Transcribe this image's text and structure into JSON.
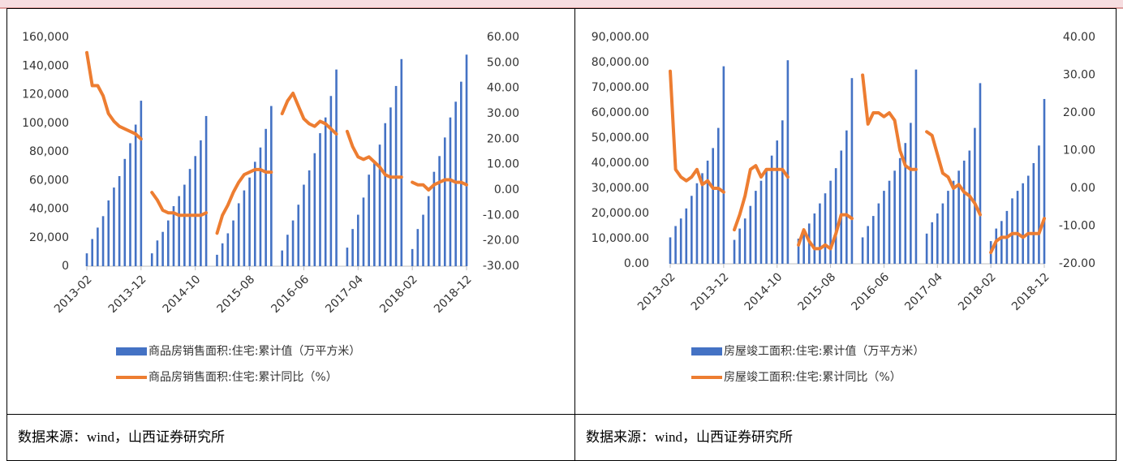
{
  "chart_data": [
    {
      "type": "bar_line",
      "categories": [
        "2013-02",
        null,
        null,
        null,
        null,
        null,
        null,
        null,
        null,
        null,
        "2013-12",
        null,
        null,
        null,
        null,
        null,
        null,
        null,
        null,
        null,
        "2014-10",
        null,
        null,
        null,
        null,
        null,
        null,
        null,
        null,
        null,
        "2015-08",
        null,
        null,
        null,
        null,
        null,
        null,
        null,
        null,
        null,
        "2016-06",
        null,
        null,
        null,
        null,
        null,
        null,
        null,
        null,
        null,
        "2017-04",
        null,
        null,
        null,
        null,
        null,
        null,
        null,
        null,
        null,
        "2018-02",
        null,
        null,
        null,
        null,
        null,
        null,
        null,
        null,
        null,
        "2018-12"
      ],
      "series": [
        {
          "name": "商品房销售面积:住宅:累计值（万平方米）",
          "kind": "bar",
          "color": "#4472c4",
          "values": [
            9000,
            19000,
            27000,
            35000,
            46000,
            55000,
            63000,
            75000,
            86000,
            99000,
            115700,
            null,
            9000,
            18000,
            24000,
            32000,
            42000,
            49000,
            57000,
            68000,
            77000,
            88000,
            105000,
            null,
            8000,
            16000,
            23000,
            32000,
            44000,
            53000,
            62000,
            73000,
            83000,
            96000,
            112000,
            null,
            11000,
            22000,
            32000,
            43000,
            57000,
            67000,
            79000,
            93000,
            104000,
            119000,
            137500,
            null,
            13000,
            26000,
            36000,
            48000,
            64000,
            73000,
            85000,
            100000,
            111000,
            126000,
            144800,
            null,
            12000,
            26000,
            36000,
            49000,
            66000,
            77000,
            90000,
            104000,
            115000,
            129000,
            147900
          ]
        },
        {
          "name": "商品房销售面积:住宅:累计同比（%）",
          "kind": "line",
          "axis": "y2",
          "color": "#ed7d31",
          "values": [
            54,
            41,
            41,
            37,
            30,
            27,
            25,
            24,
            23,
            22,
            20,
            null,
            -1,
            -4,
            -8,
            -9,
            -9,
            -10,
            -10,
            -10,
            -10,
            -10,
            -9,
            null,
            -17,
            -10,
            -6,
            -1,
            3,
            6,
            7,
            8,
            8,
            7,
            7,
            null,
            30,
            35,
            38,
            33,
            28,
            26,
            25,
            27,
            26,
            24,
            22,
            null,
            23,
            17,
            13,
            12,
            13,
            11,
            9,
            6,
            5,
            5,
            5,
            null,
            3,
            2,
            2,
            0,
            2,
            3,
            4,
            4,
            3,
            3,
            2
          ]
        }
      ],
      "ylim": [
        0,
        160000
      ],
      "yticks": [
        {
          "value": 0,
          "label": "0"
        },
        {
          "value": 20000,
          "label": "20,000"
        },
        {
          "value": 40000,
          "label": "40,000"
        },
        {
          "value": 60000,
          "label": "60,000"
        },
        {
          "value": 80000,
          "label": "80,000"
        },
        {
          "value": 100000,
          "label": "100,000"
        },
        {
          "value": 120000,
          "label": "120,000"
        },
        {
          "value": 140000,
          "label": "140,000"
        },
        {
          "value": 160000,
          "label": "160,000"
        }
      ],
      "y2lim": [
        -30,
        60
      ],
      "y2ticks": [
        {
          "value": -30,
          "label": "-30.00"
        },
        {
          "value": -20,
          "label": "-20.00"
        },
        {
          "value": -10,
          "label": "-10.00"
        },
        {
          "value": 0,
          "label": "0.00"
        },
        {
          "value": 10,
          "label": "10.00"
        },
        {
          "value": 20,
          "label": "20.00"
        },
        {
          "value": 30,
          "label": "30.00"
        },
        {
          "value": 40,
          "label": "40.00"
        },
        {
          "value": 50,
          "label": "50.00"
        },
        {
          "value": 60,
          "label": "60.00"
        }
      ],
      "legend": "bottom"
    },
    {
      "type": "bar_line",
      "categories": [
        "2013-02",
        null,
        null,
        null,
        null,
        null,
        null,
        null,
        null,
        null,
        "2013-12",
        null,
        null,
        null,
        null,
        null,
        null,
        null,
        null,
        null,
        "2014-10",
        null,
        null,
        null,
        null,
        null,
        null,
        null,
        null,
        null,
        "2015-08",
        null,
        null,
        null,
        null,
        null,
        null,
        null,
        null,
        null,
        "2016-06",
        null,
        null,
        null,
        null,
        null,
        null,
        null,
        null,
        null,
        "2017-04",
        null,
        null,
        null,
        null,
        null,
        null,
        null,
        null,
        null,
        "2018-02",
        null,
        null,
        null,
        null,
        null,
        null,
        null,
        null,
        null,
        "2018-12"
      ],
      "series": [
        {
          "name": "房屋竣工面积:住宅:累计值（万平方米）",
          "kind": "bar",
          "color": "#4472c4",
          "values": [
            10500,
            15000,
            18000,
            22000,
            27000,
            32000,
            36000,
            41000,
            46000,
            54000,
            78500,
            null,
            9500,
            14000,
            18000,
            23000,
            29000,
            33000,
            38000,
            43000,
            49000,
            57000,
            80900,
            null,
            10000,
            13500,
            16000,
            20000,
            24000,
            28000,
            33000,
            38000,
            45000,
            53000,
            73800,
            null,
            10500,
            15000,
            19000,
            24000,
            29000,
            33000,
            37000,
            42000,
            48000,
            56000,
            77200,
            null,
            12000,
            16500,
            20000,
            24000,
            29000,
            33000,
            37000,
            41000,
            45000,
            54000,
            71800,
            null,
            9000,
            14000,
            17000,
            21000,
            26000,
            29000,
            32000,
            35000,
            40000,
            47000,
            65500
          ]
        },
        {
          "name": "房屋竣工面积:住宅:累计同比（%）",
          "kind": "line",
          "axis": "y2",
          "color": "#ed7d31",
          "values": [
            31,
            5,
            3,
            2,
            3,
            5,
            1,
            2,
            0,
            0,
            -1,
            null,
            -11,
            -7,
            -2,
            5,
            6,
            3,
            5,
            5,
            5,
            5,
            3,
            null,
            -15,
            -11,
            -14,
            -16,
            -16,
            -15,
            -16,
            -12,
            -7,
            -7,
            -8,
            null,
            30,
            17,
            20,
            20,
            19,
            20,
            18,
            10,
            6,
            5,
            5,
            null,
            15,
            14,
            9,
            4,
            3,
            0,
            1,
            -1,
            -2,
            -4,
            -7,
            null,
            -17,
            -14,
            -13,
            -13,
            -12,
            -12,
            -13,
            -12,
            -12,
            -12,
            -8
          ]
        }
      ],
      "ylim": [
        0,
        90000
      ],
      "yticks": [
        {
          "value": 0,
          "label": "0.00"
        },
        {
          "value": 10000,
          "label": "10,000.00"
        },
        {
          "value": 20000,
          "label": "20,000.00"
        },
        {
          "value": 30000,
          "label": "30,000.00"
        },
        {
          "value": 40000,
          "label": "40,000.00"
        },
        {
          "value": 50000,
          "label": "50,000.00"
        },
        {
          "value": 60000,
          "label": "60,000.00"
        },
        {
          "value": 70000,
          "label": "70,000.00"
        },
        {
          "value": 80000,
          "label": "80,000.00"
        },
        {
          "value": 90000,
          "label": "90,000.00"
        }
      ],
      "y2lim": [
        -20,
        40
      ],
      "y2ticks": [
        {
          "value": -20,
          "label": "-20.00"
        },
        {
          "value": -10,
          "label": "-10.00"
        },
        {
          "value": 0,
          "label": "0.00"
        },
        {
          "value": 10,
          "label": "10.00"
        },
        {
          "value": 20,
          "label": "20.00"
        },
        {
          "value": 30,
          "label": "30.00"
        },
        {
          "value": 40,
          "label": "40.00"
        }
      ],
      "legend": "bottom"
    }
  ],
  "table": {
    "sources": [
      "数据来源：wind，山西证券研究所",
      "数据来源：wind，山西证券研究所"
    ]
  }
}
